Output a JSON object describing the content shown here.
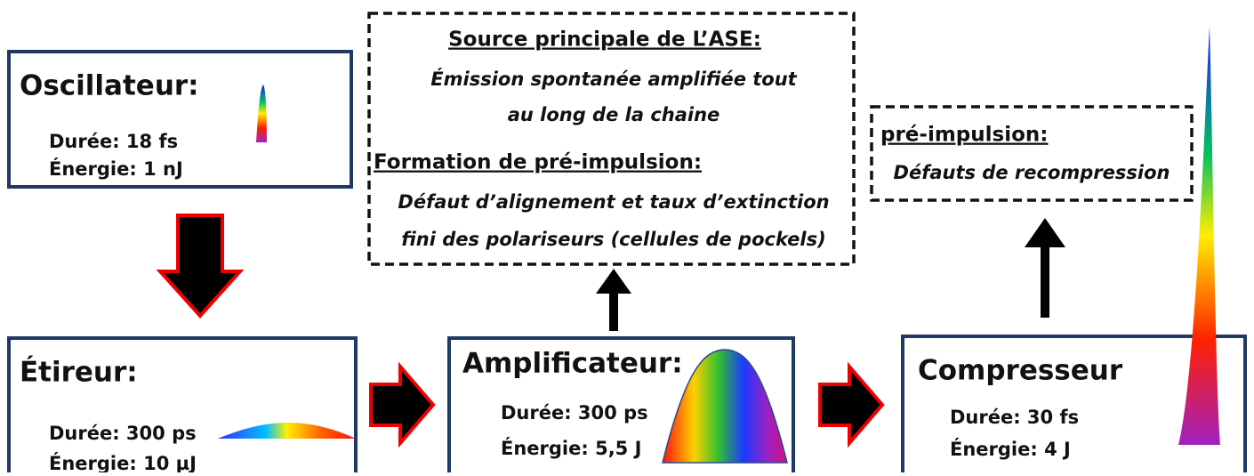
{
  "stages": [
    {
      "title": "Oscillateur:",
      "duration": "Durée: 18 fs",
      "energy": "Énergie: 1 nJ"
    },
    {
      "title": "Étireur:",
      "duration": "Durée: 300 ps",
      "energy": "Énergie: 10 µJ"
    },
    {
      "title": "Amplificateur:",
      "duration": "Durée: 300 ps",
      "energy": "Énergie: 5,5 J"
    },
    {
      "title": "Compresseur",
      "duration": "Durée: 30 fs",
      "energy": "Énergie:  4 J"
    }
  ],
  "ase_box": {
    "heading": "Source principale de L’ASE:",
    "lines": [
      "Émission spontanée amplifiée tout",
      "au long de la chaine"
    ],
    "heading2": "Formation de pré-impulsion:",
    "lines2": [
      "Défaut d’alignement  et taux d’extinction",
      "fini des polariseurs  (cellules de pockels)"
    ]
  },
  "prepulse_box": {
    "heading": "pré-impulsion:",
    "text": "Défauts de recompression"
  }
}
